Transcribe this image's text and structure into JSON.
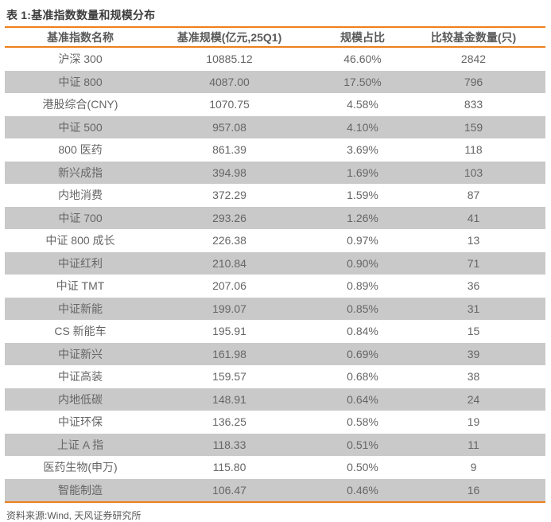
{
  "title": "表 1:基准指数数量和规模分布",
  "table": {
    "columns": [
      "基准指数名称",
      "基准规模(亿元,25Q1)",
      "规模占比",
      "比较基金数量(只)"
    ],
    "rows": [
      [
        "沪深 300",
        "10885.12",
        "46.60%",
        "2842"
      ],
      [
        "中证 800",
        "4087.00",
        "17.50%",
        "796"
      ],
      [
        "港股综合(CNY)",
        "1070.75",
        "4.58%",
        "833"
      ],
      [
        "中证 500",
        "957.08",
        "4.10%",
        "159"
      ],
      [
        "800 医药",
        "861.39",
        "3.69%",
        "118"
      ],
      [
        "新兴成指",
        "394.98",
        "1.69%",
        "103"
      ],
      [
        "内地消费",
        "372.29",
        "1.59%",
        "87"
      ],
      [
        "中证 700",
        "293.26",
        "1.26%",
        "41"
      ],
      [
        "中证 800 成长",
        "226.38",
        "0.97%",
        "13"
      ],
      [
        "中证红利",
        "210.84",
        "0.90%",
        "71"
      ],
      [
        "中证 TMT",
        "207.06",
        "0.89%",
        "36"
      ],
      [
        "中证新能",
        "199.07",
        "0.85%",
        "31"
      ],
      [
        "CS 新能车",
        "195.91",
        "0.84%",
        "15"
      ],
      [
        "中证新兴",
        "161.98",
        "0.69%",
        "39"
      ],
      [
        "中证高装",
        "159.57",
        "0.68%",
        "38"
      ],
      [
        "内地低碳",
        "148.91",
        "0.64%",
        "24"
      ],
      [
        "中证环保",
        "136.25",
        "0.58%",
        "19"
      ],
      [
        "上证 A 指",
        "118.33",
        "0.51%",
        "11"
      ],
      [
        "医药生物(申万)",
        "115.80",
        "0.50%",
        "9"
      ],
      [
        "智能制造",
        "106.47",
        "0.46%",
        "16"
      ]
    ]
  },
  "footer": {
    "source": "资料来源:Wind, 天风证券研究所"
  },
  "colors": {
    "accent_orange": "#ee7f1d",
    "band_gray": "#c9c9c9",
    "body_text_gray": "#666666",
    "header_text_gray": "#595959",
    "title_gray": "#3d3d3d"
  }
}
